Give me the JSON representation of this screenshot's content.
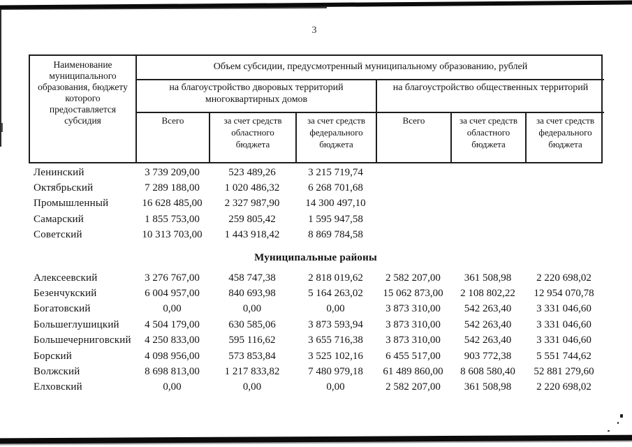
{
  "page": {
    "number": "3"
  },
  "table": {
    "header": {
      "name_column": "Наименование муниципального образования, бюджету которого предоставляется субсидия",
      "top": "Объем субсидии, предусмотренный муниципальному образованию, рублей",
      "group_courtyards": "на благоустройство дворовых территорий многоквартирных домов",
      "group_public": "на благоустройство общественных территорий",
      "sub_total_1": "Всего",
      "sub_regional_1": "за счет средств областного бюджета",
      "sub_federal_1": "за счет средств федерального бюджета",
      "sub_total_2": "Всего",
      "sub_regional_2": "за счет средств областного бюджета",
      "sub_federal_2": "за счет средств федерального бюджета"
    },
    "sections": [
      {
        "title": null,
        "rows": [
          {
            "name": "Ленинский",
            "values": [
              "3 739 209,00",
              "523 489,26",
              "3 215 719,74",
              "",
              "",
              ""
            ]
          },
          {
            "name": "Октябрьский",
            "values": [
              "7 289 188,00",
              "1 020 486,32",
              "6 268 701,68",
              "",
              "",
              ""
            ]
          },
          {
            "name": "Промышленный",
            "values": [
              "16 628 485,00",
              "2 327 987,90",
              "14 300 497,10",
              "",
              "",
              ""
            ]
          },
          {
            "name": "Самарский",
            "values": [
              "1 855 753,00",
              "259 805,42",
              "1 595 947,58",
              "",
              "",
              ""
            ]
          },
          {
            "name": "Советский",
            "values": [
              "10 313 703,00",
              "1 443 918,42",
              "8 869 784,58",
              "",
              "",
              ""
            ]
          }
        ]
      },
      {
        "title": "Муниципальные районы",
        "rows": [
          {
            "name": "Алексеевский",
            "values": [
              "3 276 767,00",
              "458 747,38",
              "2 818 019,62",
              "2 582 207,00",
              "361 508,98",
              "2 220 698,02"
            ]
          },
          {
            "name": "Безенчукский",
            "values": [
              "6 004 957,00",
              "840 693,98",
              "5 164 263,02",
              "15 062 873,00",
              "2 108 802,22",
              "12 954 070,78"
            ]
          },
          {
            "name": "Богатовский",
            "values": [
              "0,00",
              "0,00",
              "0,00",
              "3 873 310,00",
              "542 263,40",
              "3 331 046,60"
            ]
          },
          {
            "name": "Большеглушицкий",
            "values": [
              "4 504 179,00",
              "630 585,06",
              "3 873 593,94",
              "3 873 310,00",
              "542 263,40",
              "3 331 046,60"
            ]
          },
          {
            "name": "Большечерниговский",
            "values": [
              "4 250 833,00",
              "595 116,62",
              "3 655 716,38",
              "3 873 310,00",
              "542 263,40",
              "3 331 046,60"
            ]
          },
          {
            "name": "Борский",
            "values": [
              "4 098 956,00",
              "573 853,84",
              "3 525 102,16",
              "6 455 517,00",
              "903 772,38",
              "5 551 744,62"
            ]
          },
          {
            "name": "Волжский",
            "values": [
              "8 698 813,00",
              "1 217 833,82",
              "7 480 979,18",
              "61 489 860,00",
              "8 608 580,40",
              "52 881 279,60"
            ]
          },
          {
            "name": "Елховский",
            "values": [
              "0,00",
              "0,00",
              "0,00",
              "2 582 207,00",
              "361 508,98",
              "2 220 698,02"
            ]
          }
        ]
      }
    ]
  }
}
